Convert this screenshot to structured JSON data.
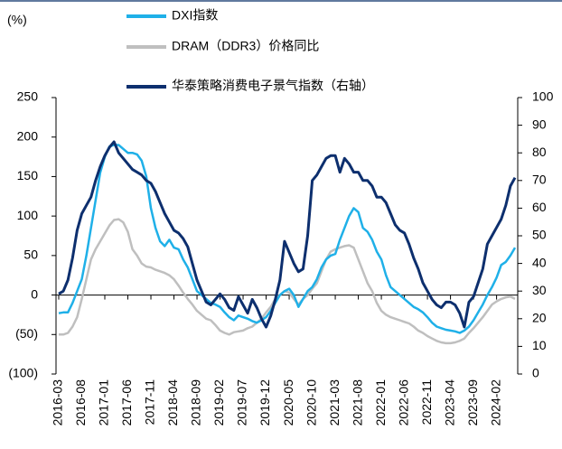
{
  "chart_data": {
    "type": "line",
    "y_label": "(%)",
    "categories": [
      "2016-03",
      null,
      null,
      null,
      null,
      "2016-08",
      null,
      null,
      null,
      null,
      "2017-01",
      null,
      null,
      null,
      null,
      "2017-06",
      null,
      null,
      null,
      null,
      "2017-11",
      null,
      null,
      null,
      null,
      "2018-04",
      null,
      null,
      null,
      null,
      "2018-09",
      null,
      null,
      null,
      null,
      "2019-02",
      null,
      null,
      null,
      null,
      "2019-07",
      null,
      null,
      null,
      null,
      "2019-12",
      null,
      null,
      null,
      null,
      "2020-05",
      null,
      null,
      null,
      null,
      "2020-10",
      null,
      null,
      null,
      null,
      "2021-03",
      null,
      null,
      null,
      null,
      "2021-08",
      null,
      null,
      null,
      null,
      "2022-01",
      null,
      null,
      null,
      null,
      "2022-06",
      null,
      null,
      null,
      null,
      "2022-11",
      null,
      null,
      null,
      null,
      "2023-04",
      null,
      null,
      null,
      null,
      "2023-09",
      null,
      null,
      null,
      null,
      "2024-02",
      null,
      null,
      null,
      null
    ],
    "series": [
      {
        "name": "DXI指数",
        "color": "#1fb0e8",
        "values": [
          -23,
          -22,
          -22,
          -10,
          5,
          20,
          50,
          85,
          120,
          155,
          175,
          188,
          190,
          190,
          185,
          180,
          180,
          178,
          170,
          150,
          110,
          85,
          68,
          62,
          70,
          60,
          58,
          45,
          35,
          20,
          5,
          0,
          -5,
          -10,
          -12,
          -15,
          -22,
          -28,
          -32,
          -26,
          -28,
          -30,
          -33,
          -35,
          -32,
          -28,
          -20,
          -10,
          0,
          5,
          8,
          0,
          -15,
          -5,
          5,
          10,
          20,
          35,
          45,
          50,
          52,
          70,
          85,
          100,
          110,
          105,
          85,
          80,
          70,
          55,
          45,
          25,
          10,
          5,
          0,
          -5,
          -10,
          -15,
          -18,
          -22,
          -28,
          -35,
          -40,
          -42,
          -44,
          -45,
          -46,
          -48,
          -45,
          -40,
          -32,
          -22,
          -12,
          0,
          10,
          22,
          38,
          42,
          50,
          60
        ]
      },
      {
        "name": "DRAM（DDR3）价格同比",
        "color": "#bfbfbf",
        "values": [
          -50,
          -50,
          -48,
          -40,
          -28,
          -5,
          20,
          45,
          58,
          68,
          78,
          88,
          95,
          96,
          92,
          80,
          58,
          50,
          40,
          36,
          35,
          32,
          30,
          28,
          25,
          20,
          12,
          3,
          -5,
          -12,
          -20,
          -25,
          -30,
          -32,
          -38,
          -45,
          -48,
          -50,
          -47,
          -46,
          -45,
          -42,
          -40,
          -35,
          -30,
          -22,
          -15,
          -5,
          0,
          5,
          3,
          -5,
          -12,
          -5,
          0,
          8,
          15,
          30,
          45,
          55,
          58,
          60,
          62,
          63,
          60,
          45,
          30,
          15,
          5,
          -10,
          -20,
          -25,
          -28,
          -30,
          -32,
          -34,
          -36,
          -40,
          -45,
          -48,
          -52,
          -55,
          -58,
          -60,
          -61,
          -61,
          -60,
          -58,
          -55,
          -48,
          -42,
          -35,
          -28,
          -20,
          -12,
          -8,
          -5,
          -3,
          -2,
          -5
        ]
      },
      {
        "name": "华泰策略消费电子景气指数（右轴）",
        "color": "#0d2f6e",
        "axis": "y2",
        "values": [
          29,
          30,
          34,
          42,
          52,
          58,
          61,
          64,
          70,
          75,
          79,
          82,
          84,
          80,
          78,
          76,
          74,
          73,
          72,
          70,
          69,
          66,
          62,
          58,
          55,
          52,
          51,
          49,
          46,
          40,
          34,
          30,
          26,
          25,
          27,
          29,
          27,
          24,
          23,
          28,
          25,
          22,
          27,
          24,
          20,
          17,
          21,
          27,
          34,
          48,
          44,
          40,
          37,
          38,
          50,
          70,
          72,
          75,
          78,
          79,
          79,
          73,
          78,
          76,
          73,
          73,
          70,
          70,
          68,
          64,
          64,
          62,
          58,
          54,
          52,
          51,
          47,
          42,
          38,
          33,
          30,
          27,
          25,
          24,
          26,
          26,
          25,
          22,
          17,
          26,
          28,
          33,
          38,
          47,
          50,
          53,
          56,
          61,
          68,
          71
        ]
      }
    ],
    "ylim": [
      -100,
      250
    ],
    "yticks": [
      {
        "value": -100,
        "label": "(100)"
      },
      {
        "value": -50,
        "label": "(50)"
      },
      0,
      50,
      100,
      150,
      200,
      250
    ],
    "y2lim": [
      0,
      100
    ],
    "y2ticks": [
      0,
      10,
      20,
      30,
      40,
      50,
      60,
      70,
      80,
      90,
      100
    ],
    "grid": false
  }
}
